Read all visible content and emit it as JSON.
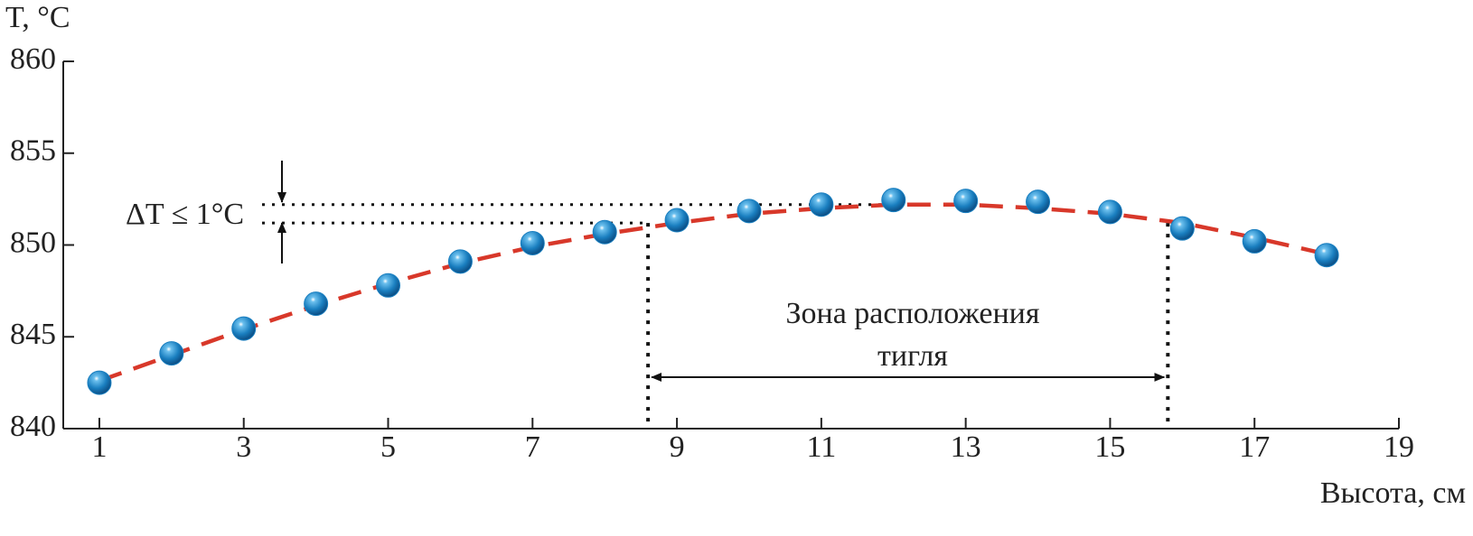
{
  "chart_data": {
    "type": "scatter",
    "y_label": "T, °C",
    "x_label": "Высота, см",
    "delta_label": "ΔT ≤ 1°C",
    "zone_label": [
      "Зона расположения",
      "тигля"
    ],
    "x": [
      1,
      2,
      3,
      4,
      5,
      6,
      7,
      8,
      9,
      10,
      11,
      12,
      13,
      14,
      15,
      16,
      17,
      18
    ],
    "series": [
      {
        "color": "#1a7fc0",
        "values": [
          842.5,
          844.1,
          845.45,
          846.8,
          847.8,
          849.1,
          850.1,
          850.7,
          851.35,
          851.85,
          852.2,
          852.45,
          852.4,
          852.35,
          851.8,
          850.9,
          850.2,
          849.45
        ]
      },
      {
        "color": "#d8382a",
        "dashed": true,
        "values": [
          842.6,
          844.0,
          845.4,
          846.7,
          847.9,
          849.0,
          849.9,
          850.6,
          851.2,
          851.7,
          852.0,
          852.2,
          852.2,
          852.0,
          851.7,
          851.2,
          850.4,
          849.5
        ]
      }
    ],
    "delta_lines": [
      852.2,
      851.2
    ],
    "zone": [
      8.6,
      15.8
    ],
    "xlim": [
      0.5,
      19
    ],
    "xticks": [
      1,
      3,
      5,
      7,
      9,
      11,
      13,
      15,
      17,
      19
    ],
    "ylim": [
      840,
      860
    ],
    "yticks": [
      840,
      845,
      850,
      855,
      860
    ]
  }
}
